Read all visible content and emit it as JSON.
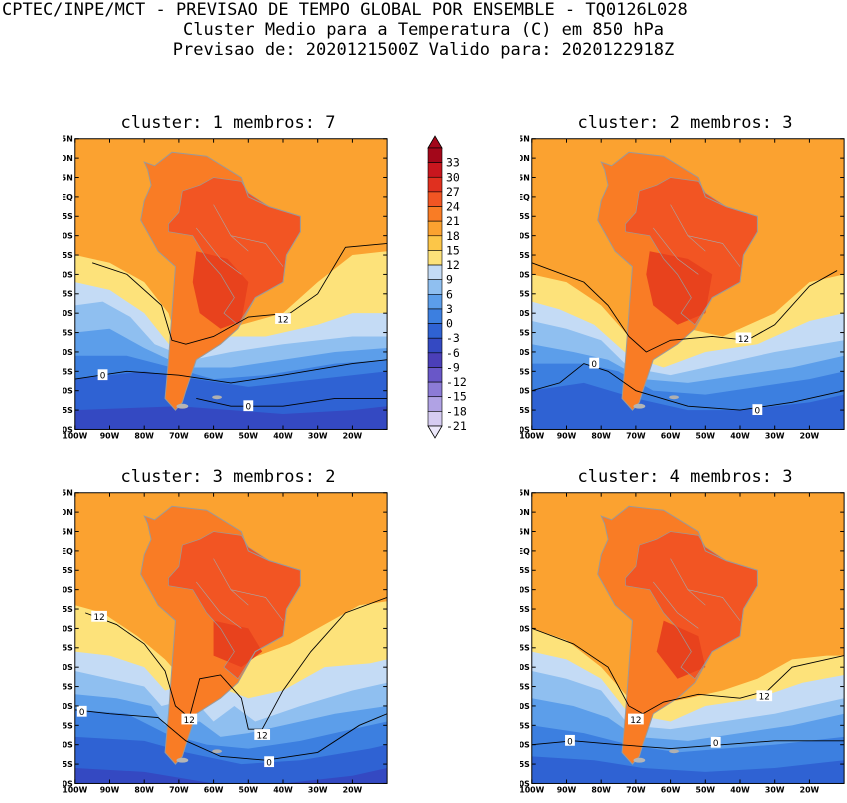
{
  "header": {
    "line1": "CPTEC/INPE/MCT - PREVISAO DE TEMPO GLOBAL POR ENSEMBLE - TQ0126L028",
    "line2": "Cluster Medio para a Temperatura (C) em 850 hPa",
    "line3": "Previsao de: 2020121500Z   Valido para: 2020122918Z"
  },
  "axes": {
    "lat_labels": [
      "15N",
      "10N",
      "5N",
      "EQ",
      "5S",
      "10S",
      "15S",
      "20S",
      "25S",
      "30S",
      "35S",
      "40S",
      "45S",
      "50S",
      "55S",
      "60S"
    ],
    "lon_labels": [
      "100W",
      "90W",
      "80W",
      "70W",
      "60W",
      "50W",
      "40W",
      "30W",
      "20W"
    ]
  },
  "colorbar": {
    "labels": [
      "33",
      "30",
      "27",
      "24",
      "21",
      "18",
      "15",
      "12",
      "9",
      "6",
      "3",
      "0",
      "-3",
      "-6",
      "-9",
      "-12",
      "-15",
      "-18",
      "-21"
    ],
    "colors": [
      "#a3071a",
      "#c8161e",
      "#e0301f",
      "#f25523",
      "#f97c25",
      "#fba230",
      "#fcc648",
      "#fde27a",
      "#c4dbf5",
      "#8fbff0",
      "#5c9eea",
      "#3c7fe0",
      "#2f62d3",
      "#3449c2",
      "#4b3fb8",
      "#6957c8",
      "#8c7bd6",
      "#b0a2e4",
      "#d6ccf2"
    ]
  },
  "panels": [
    {
      "title": "cluster: 1   membros: 7",
      "labels": [
        {
          "text": "12",
          "lon": -40,
          "lat": -31.5
        },
        {
          "text": "0",
          "lon": -92,
          "lat": -46
        },
        {
          "text": "0",
          "lon": -50,
          "lat": -54
        }
      ]
    },
    {
      "title": "cluster: 2   membros: 3",
      "labels": [
        {
          "text": "12",
          "lon": -39,
          "lat": -36.5
        },
        {
          "text": "0",
          "lon": -82,
          "lat": -43
        },
        {
          "text": "0",
          "lon": -35,
          "lat": -55
        }
      ]
    },
    {
      "title": "cluster: 3   membros: 2",
      "labels": [
        {
          "text": "12",
          "lon": -93,
          "lat": -17
        },
        {
          "text": "12",
          "lon": -67,
          "lat": -43.5
        },
        {
          "text": "12",
          "lon": -46,
          "lat": -47.5
        },
        {
          "text": "0",
          "lon": -98,
          "lat": -41.5
        },
        {
          "text": "0",
          "lon": -44,
          "lat": -54.5
        }
      ]
    },
    {
      "title": "cluster: 4   membros: 3",
      "labels": [
        {
          "text": "12",
          "lon": -33,
          "lat": -37.5
        },
        {
          "text": "12",
          "lon": -70,
          "lat": -43.5
        },
        {
          "text": "0",
          "lon": -89,
          "lat": -49
        },
        {
          "text": "0",
          "lon": -47,
          "lat": -49.5
        }
      ]
    }
  ]
}
